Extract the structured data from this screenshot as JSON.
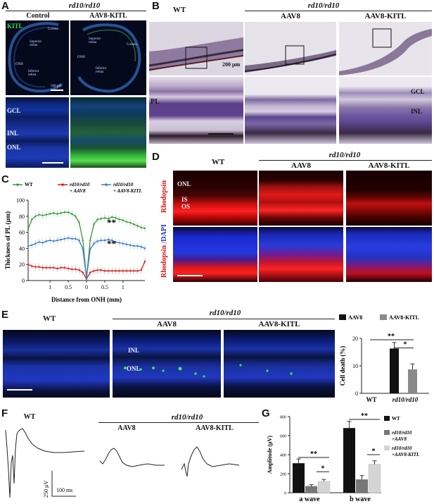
{
  "panels": {
    "A": {
      "label": "A",
      "header": "rd10/rd10",
      "col_control": "Control",
      "col_aav8kitl": "AAV8-KITL",
      "kitl_label": "KITL",
      "control_annot": {
        "cornea": "Cornea",
        "superior": "Superior retina",
        "onh": "ONH",
        "inferior": "Inferior retina",
        "scale": "500 µm"
      },
      "kitl_annot": {
        "superior": "Superior retina",
        "onh": "ONH",
        "cornea": "Cornea",
        "inferior": "Inferior retina"
      },
      "layers": [
        "GCL",
        "INL",
        "ONL"
      ]
    },
    "B": {
      "label": "B",
      "header": "rd10/rd10",
      "col_wt": "WT",
      "col_aav8": "AAV8",
      "col_aav8kitl": "AAV8-KITL",
      "scale": "200 µm",
      "pl_label": "PL",
      "layers": [
        "GCL",
        "INL"
      ]
    },
    "C": {
      "label": "C",
      "legend": [
        {
          "name": "WT",
          "color": "#3a9a3a"
        },
        {
          "name": "rd10/rd10\n+ AAV8",
          "color": "#d21e1e"
        },
        {
          "name": "rd10/rd10\n+ AAV8-KITL",
          "color": "#3b7ac8"
        }
      ],
      "sig1": "**",
      "sig2": "**"
    },
    "D": {
      "label": "D",
      "header": "rd10/rd10",
      "col_wt": "WT",
      "col_aav8": "AAV8",
      "col_aav8kitl": "AAV8-KITL",
      "row1_label": "Rhodopsin",
      "row2_label_a": "Rhodopsin /",
      "row2_label_b": "DAPI",
      "layers": [
        "ONL",
        "IS",
        "OS"
      ]
    },
    "E": {
      "label": "E",
      "header": "rd10/rd10",
      "col_wt": "WT",
      "col_aav8": "AAV8",
      "col_aav8kitl": "AAV8-KITL",
      "layers": [
        "INL",
        "ONL"
      ]
    },
    "F": {
      "label": "F",
      "header": "rd10/rd10",
      "col_wt": "WT",
      "col_aav8": "AAV8",
      "col_aav8kitl": "AAV8-KITL",
      "scale_v": "250 µV",
      "scale_h": "100 ms"
    },
    "G": {
      "label": "G"
    }
  },
  "chart_data": [
    {
      "id": "C",
      "type": "line",
      "xlabel": "Distance from ONH (mm)",
      "ylabel": "Thickness of PL (µm)",
      "xtick_labels": [
        "1",
        "0.5",
        "0",
        "0.5",
        "1"
      ],
      "ylim": [
        0,
        100
      ],
      "yticks": [
        0,
        20,
        40,
        60,
        80,
        100
      ],
      "x": [
        -1.6,
        -1.5,
        -1.4,
        -1.3,
        -1.2,
        -1.1,
        -1.0,
        -0.9,
        -0.8,
        -0.7,
        -0.6,
        -0.5,
        -0.4,
        -0.3,
        -0.2,
        -0.1,
        0,
        0.1,
        0.2,
        0.3,
        0.4,
        0.5,
        0.6,
        0.7,
        0.8,
        0.9,
        1.0,
        1.1,
        1.2,
        1.3,
        1.4,
        1.5,
        1.6
      ],
      "series": [
        {
          "name": "WT",
          "color": "#3a9a3a",
          "values": [
            64,
            76,
            80,
            82,
            81,
            82,
            83,
            84,
            83,
            84,
            85,
            85,
            83,
            80,
            72,
            50,
            3,
            50,
            70,
            76,
            77,
            78,
            77,
            79,
            78,
            76,
            75,
            73,
            72,
            70,
            68,
            66,
            65
          ]
        },
        {
          "name": "rd10/rd10\n+ AAV8",
          "color": "#d21e1e",
          "values": [
            20,
            18,
            17,
            17,
            16,
            16,
            16,
            16,
            15,
            16,
            16,
            15,
            14,
            14,
            13,
            10,
            2,
            10,
            12,
            13,
            13,
            12,
            12,
            12,
            12,
            12,
            12,
            12,
            12,
            12,
            12,
            13,
            24
          ]
        },
        {
          "name": "rd10/rd10\n+ AAV8-KITL",
          "color": "#3b7ac8",
          "values": [
            43,
            44,
            46,
            48,
            47,
            49,
            50,
            49,
            50,
            51,
            52,
            53,
            52,
            52,
            50,
            39,
            3,
            39,
            46,
            49,
            50,
            50,
            51,
            50,
            48,
            47,
            46,
            45,
            44,
            43,
            43,
            42,
            40
          ]
        }
      ]
    },
    {
      "id": "E",
      "type": "bar",
      "ylabel": "Cell death (%)",
      "ylim": [
        0,
        20
      ],
      "yticks": [
        0,
        10,
        20
      ],
      "legend": [
        {
          "name": "AAV8",
          "color": "#111111"
        },
        {
          "name": "AAV8-KITL",
          "color": "#8a8a8a"
        }
      ],
      "categories": [
        "WT",
        "rd10/rd10"
      ],
      "series": [
        {
          "name": "AAV8",
          "color": "#111111",
          "values": [
            0,
            16.3
          ],
          "errors": [
            0,
            2.2
          ]
        },
        {
          "name": "AAV8-KITL",
          "color": "#8a8a8a",
          "values": [
            0,
            8.7
          ],
          "errors": [
            0,
            2.0
          ]
        }
      ],
      "sig_outer": "**",
      "sig_inner": "*"
    },
    {
      "id": "G",
      "type": "bar",
      "ylabel": "Amplitude (µV)",
      "ylim": [
        0,
        800
      ],
      "yticks": [
        0,
        200,
        400,
        600,
        800
      ],
      "legend": [
        {
          "name": "WT",
          "color": "#111111"
        },
        {
          "name": "rd10/rd10\n+AAV8",
          "color": "#777777"
        },
        {
          "name": "rd10/rd10\n+AAV8-KITL",
          "color": "#d4d4d4"
        }
      ],
      "categories": [
        "a wave",
        "b wave"
      ],
      "series": [
        {
          "name": "WT",
          "color": "#111111",
          "values": [
            310,
            680
          ],
          "errors": [
            45,
            70
          ]
        },
        {
          "name": "rd10/rd10\n+AAV8",
          "color": "#777777",
          "values": [
            70,
            140
          ],
          "errors": [
            15,
            40
          ]
        },
        {
          "name": "rd10/rd10\n+AAV8-KITL",
          "color": "#d4d4d4",
          "values": [
            120,
            300
          ],
          "errors": [
            20,
            35
          ]
        }
      ],
      "sig": [
        "**",
        "*",
        "**",
        "*"
      ]
    }
  ]
}
